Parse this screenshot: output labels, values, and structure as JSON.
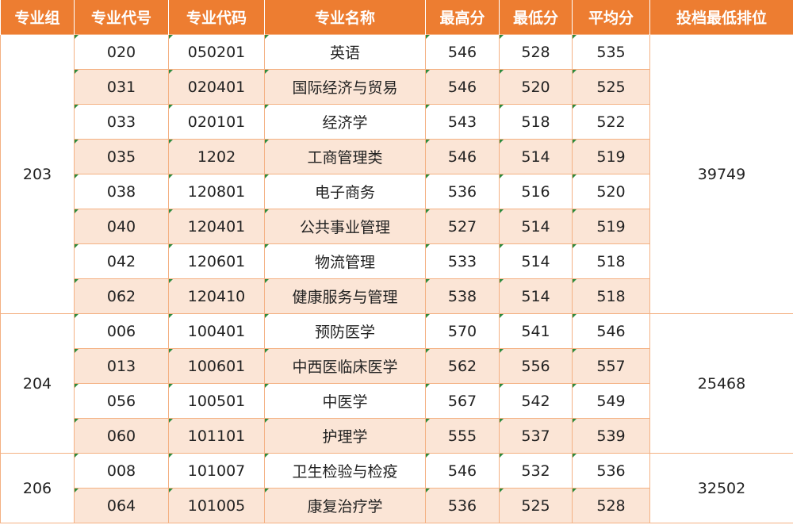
{
  "headers": [
    "专业组",
    "专业代号",
    "专业代码",
    "专业名称",
    "最高分",
    "最低分",
    "平均分",
    "投档最低排位"
  ],
  "groups": [
    {
      "group": "203",
      "rank": "39749",
      "rows": [
        {
          "code": "020",
          "mcode": "050201",
          "name": "英语",
          "max": "546",
          "min": "528",
          "avg": "535"
        },
        {
          "code": "031",
          "mcode": "020401",
          "name": "国际经济与贸易",
          "max": "546",
          "min": "520",
          "avg": "525"
        },
        {
          "code": "033",
          "mcode": "020101",
          "name": "经济学",
          "max": "543",
          "min": "518",
          "avg": "522"
        },
        {
          "code": "035",
          "mcode": "1202",
          "name": "工商管理类",
          "max": "546",
          "min": "514",
          "avg": "519"
        },
        {
          "code": "038",
          "mcode": "120801",
          "name": "电子商务",
          "max": "536",
          "min": "516",
          "avg": "520"
        },
        {
          "code": "040",
          "mcode": "120401",
          "name": "公共事业管理",
          "max": "527",
          "min": "514",
          "avg": "519"
        },
        {
          "code": "042",
          "mcode": "120601",
          "name": "物流管理",
          "max": "533",
          "min": "514",
          "avg": "518"
        },
        {
          "code": "062",
          "mcode": "120410",
          "name": "健康服务与管理",
          "max": "538",
          "min": "514",
          "avg": "518"
        }
      ]
    },
    {
      "group": "204",
      "rank": "25468",
      "rows": [
        {
          "code": "006",
          "mcode": "100401",
          "name": "预防医学",
          "max": "570",
          "min": "541",
          "avg": "546"
        },
        {
          "code": "013",
          "mcode": "100601",
          "name": "中西医临床医学",
          "max": "562",
          "min": "556",
          "avg": "557"
        },
        {
          "code": "056",
          "mcode": "100501",
          "name": "中医学",
          "max": "567",
          "min": "542",
          "avg": "549"
        },
        {
          "code": "060",
          "mcode": "101101",
          "name": "护理学",
          "max": "555",
          "min": "537",
          "avg": "539"
        }
      ]
    },
    {
      "group": "206",
      "rank": "32502",
      "rows": [
        {
          "code": "008",
          "mcode": "101007",
          "name": "卫生检验与检疫",
          "max": "546",
          "min": "532",
          "avg": "536"
        },
        {
          "code": "064",
          "mcode": "101005",
          "name": "康复治疗学",
          "max": "536",
          "min": "525",
          "avg": "528"
        }
      ]
    }
  ]
}
